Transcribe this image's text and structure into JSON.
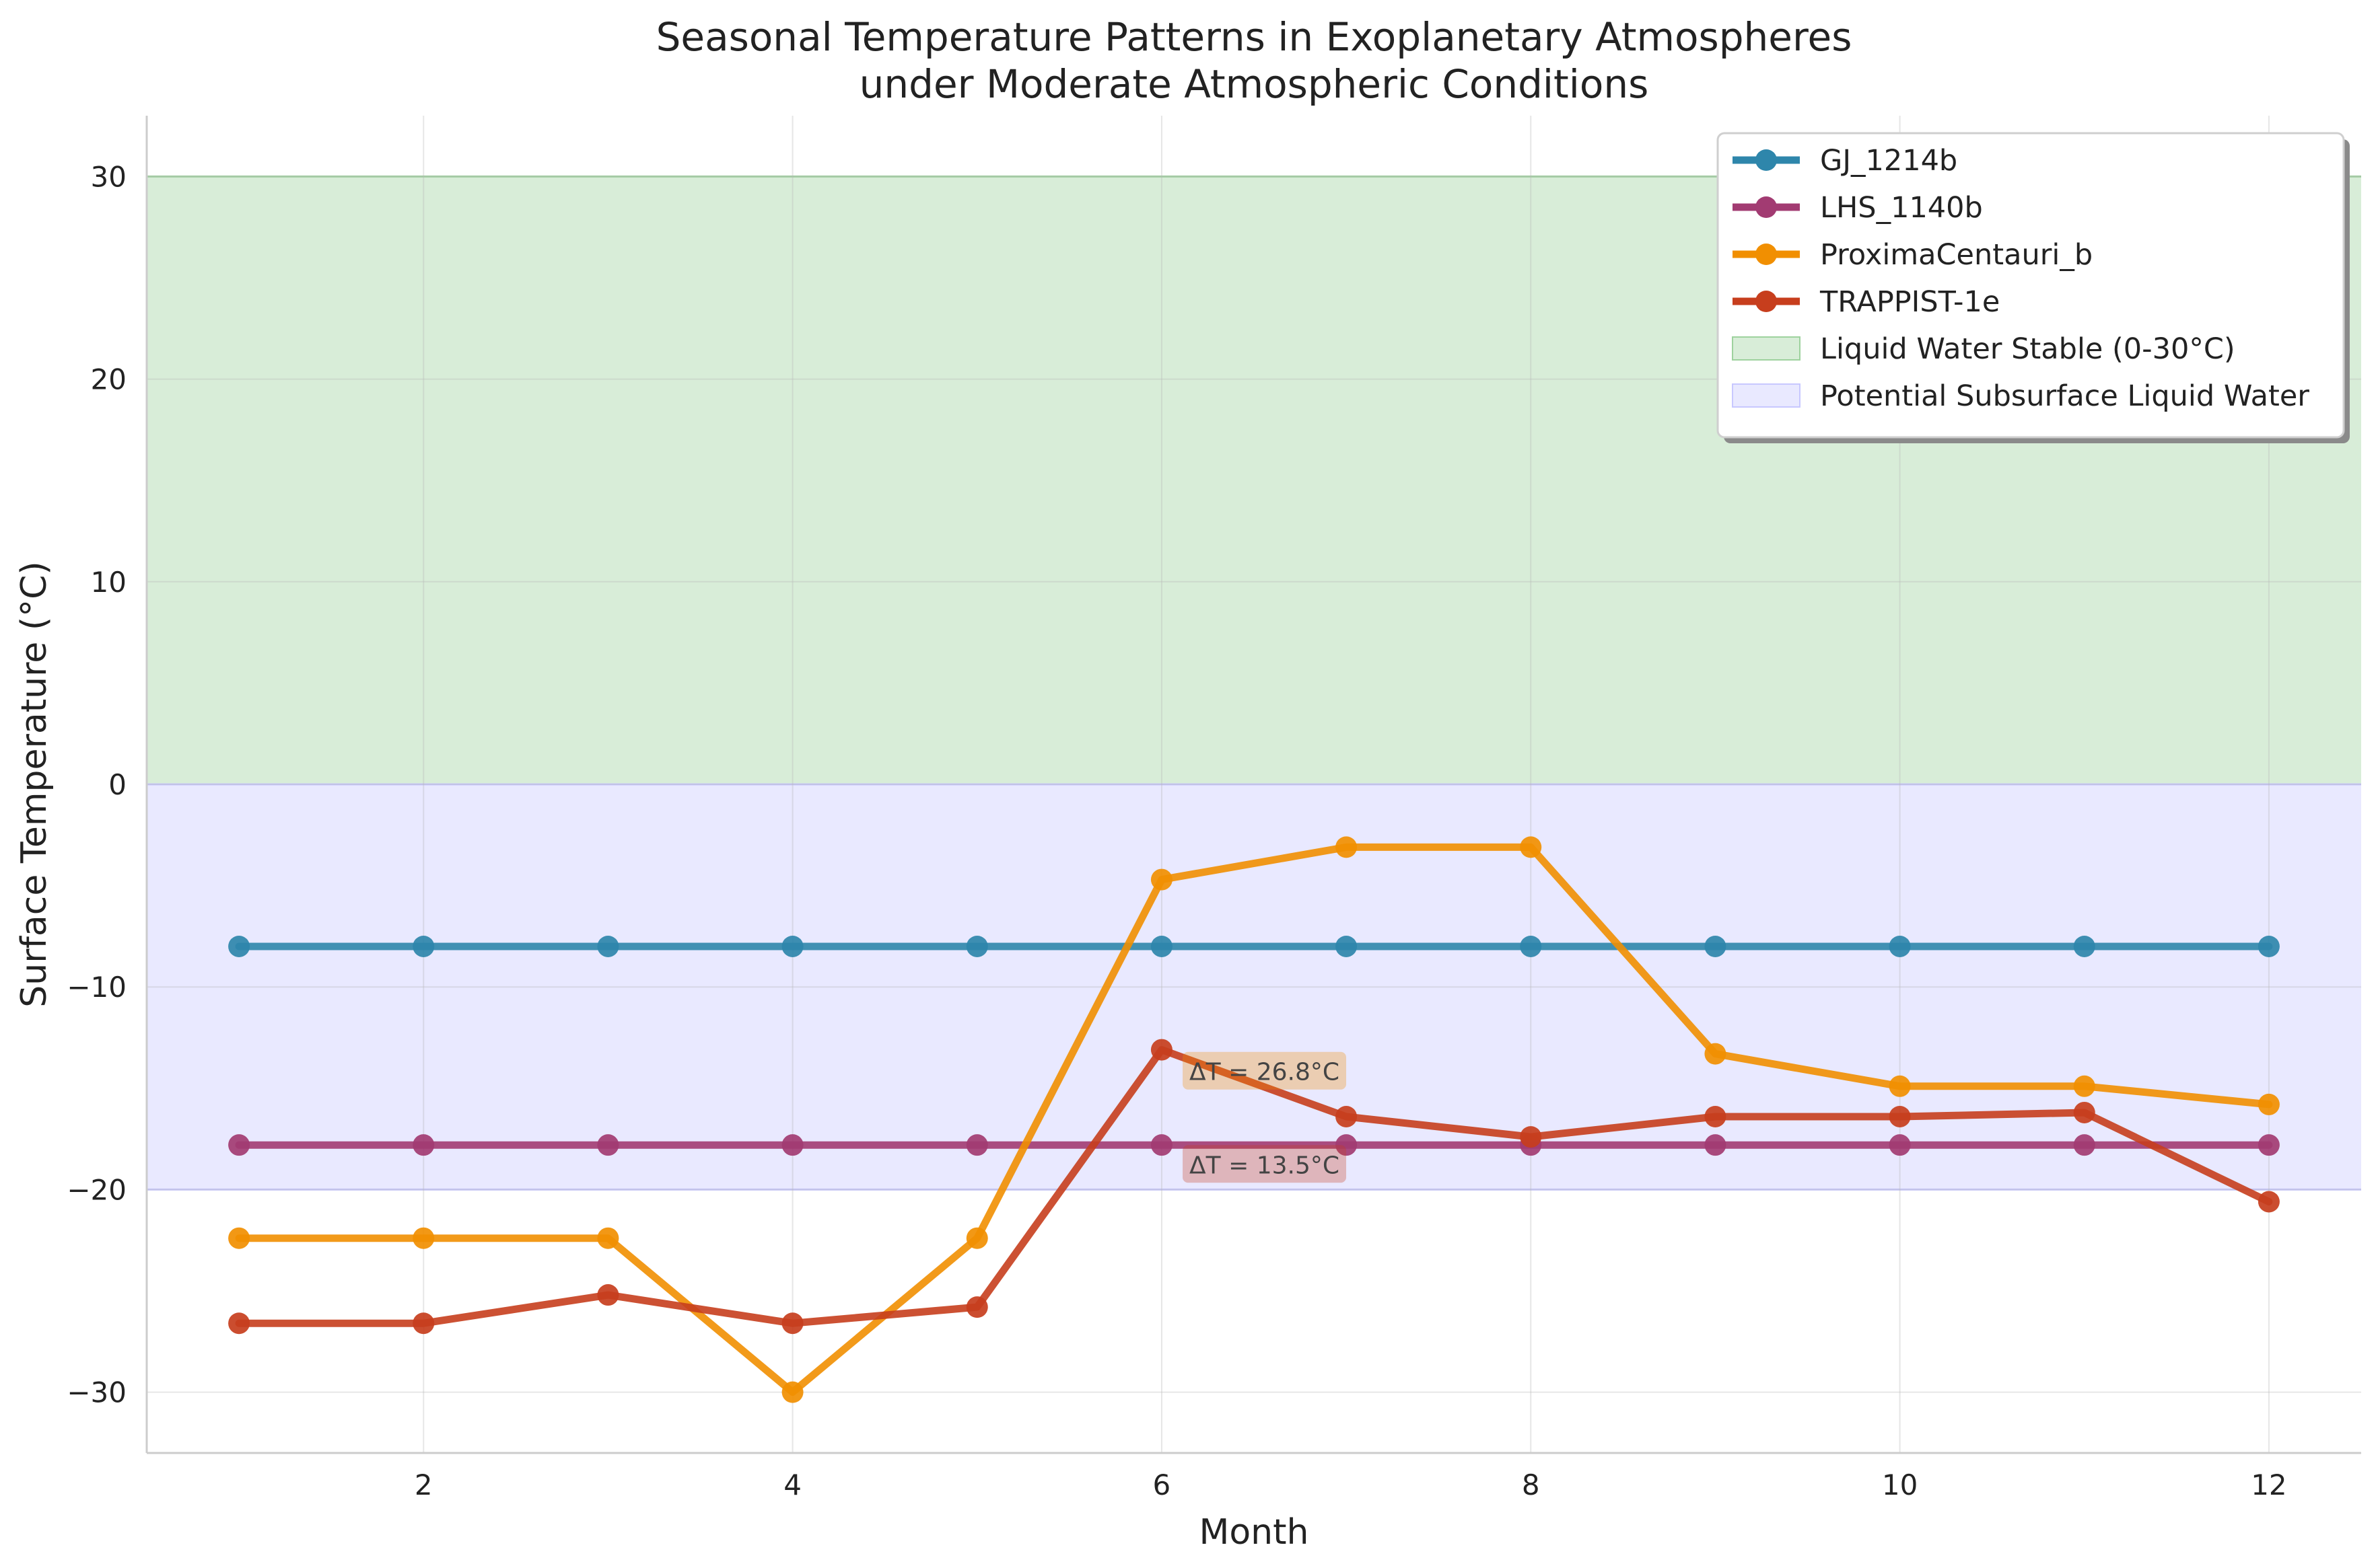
{
  "chart_data": {
    "type": "line",
    "title": [
      "Seasonal Temperature Patterns in Exoplanetary Atmospheres",
      "under Moderate Atmospheric Conditions"
    ],
    "xlabel": "Month",
    "ylabel": "Surface Temperature (°C)",
    "xlim": [
      0.5,
      12.5
    ],
    "ylim": [
      -33,
      33
    ],
    "xticks": [
      2,
      4,
      6,
      8,
      10,
      12
    ],
    "yticks": [
      -30,
      -20,
      -10,
      0,
      10,
      20,
      30
    ],
    "ytick_labels": [
      "−30",
      "−20",
      "−10",
      "0",
      "10",
      "20",
      "30"
    ],
    "grid": true,
    "legend_position": "top-right",
    "x": [
      1,
      2,
      3,
      4,
      5,
      6,
      7,
      8,
      9,
      10,
      11,
      12
    ],
    "series": [
      {
        "name": "GJ_1214b",
        "color": "#2E86AB",
        "values": [
          -8.0,
          -8.0,
          -8.0,
          -8.0,
          -8.0,
          -8.0,
          -8.0,
          -8.0,
          -8.0,
          -8.0,
          -8.0,
          -8.0
        ]
      },
      {
        "name": "LHS_1140b",
        "color": "#A23B72",
        "values": [
          -17.8,
          -17.8,
          -17.8,
          -17.8,
          -17.8,
          -17.8,
          -17.8,
          -17.8,
          -17.8,
          -17.8,
          -17.8,
          -17.8
        ]
      },
      {
        "name": "ProximaCentauri_b",
        "color": "#F18F01",
        "values": [
          -22.4,
          -22.4,
          -22.4,
          -30.0,
          -22.4,
          -4.7,
          -3.1,
          -3.1,
          -13.3,
          -14.9,
          -14.9,
          -15.8
        ]
      },
      {
        "name": "TRAPPIST-1e",
        "color": "#C73E1D",
        "values": [
          -26.6,
          -26.6,
          -25.2,
          -26.6,
          -25.8,
          -13.1,
          -16.4,
          -17.4,
          -16.4,
          -16.4,
          -16.2,
          -20.6
        ]
      }
    ],
    "bands": [
      {
        "name": "Liquid Water Stable (0-30°C)",
        "from": 0,
        "to": 30,
        "color": "#9ED29E"
      },
      {
        "name": "Potential Subsurface Liquid Water",
        "from": -20,
        "to": 0,
        "color": "#C8C8FF"
      }
    ],
    "annotations": [
      {
        "text": "ΔT = 26.8°C",
        "x": 6.15,
        "y": -14.2,
        "color": "#F18F01"
      },
      {
        "text": "ΔT = 13.5°C",
        "x": 6.15,
        "y": -18.8,
        "color": "#C73E1D"
      }
    ]
  }
}
